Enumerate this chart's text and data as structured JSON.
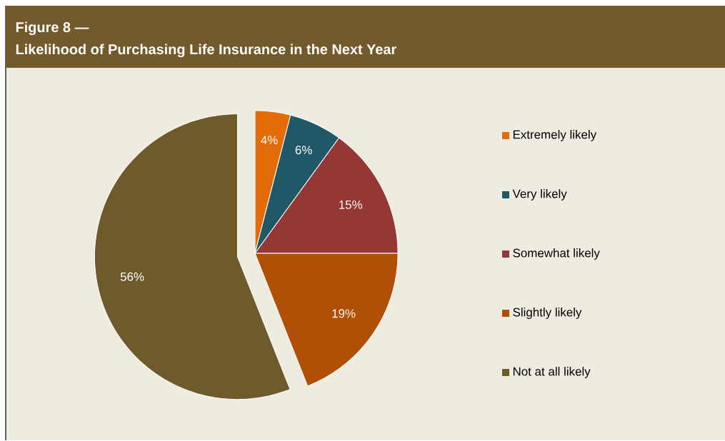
{
  "chart_data": {
    "type": "pie",
    "title": "Figure 8 —",
    "subtitle": "Likelihood of Purchasing Life Insurance in the Next Year",
    "categories": [
      "Extremely likely",
      "Very likely",
      "Somewhat likely",
      "Slightly likely",
      "Not at all likely"
    ],
    "values": [
      4,
      6,
      15,
      19,
      56
    ],
    "value_labels": [
      "4%",
      "6%",
      "15%",
      "19%",
      "56%"
    ],
    "colors": [
      "#e36c0a",
      "#215868",
      "#953735",
      "#b05006",
      "#6f5a2c"
    ],
    "legend": "right"
  }
}
